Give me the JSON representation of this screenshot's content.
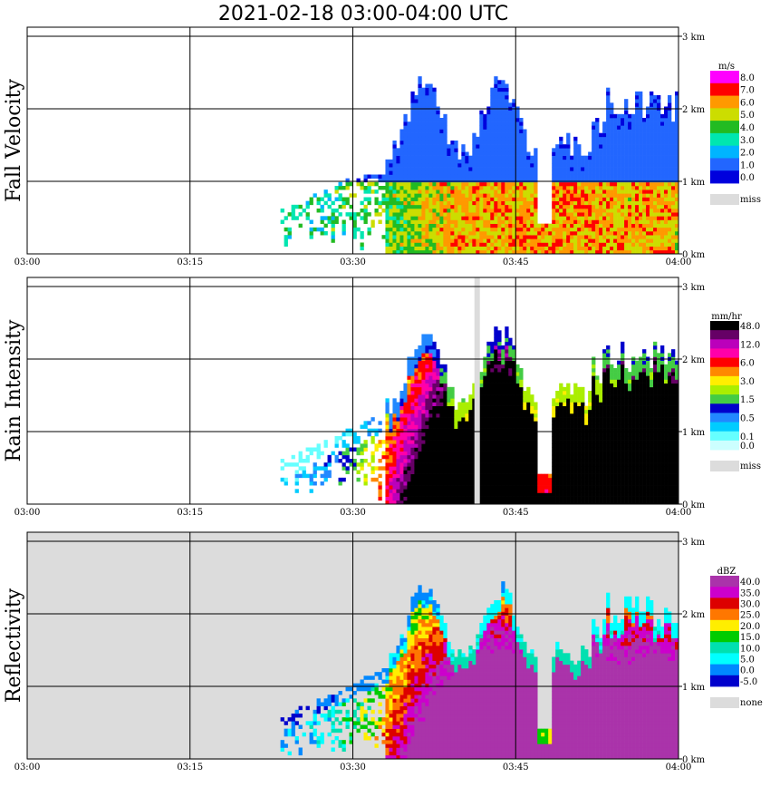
{
  "title": "2021-02-18   03:00-04:00 UTC",
  "chart_data": {
    "type": "heatmap",
    "title": "2021-02-18   03:00-04:00 UTC",
    "x_ticks": [
      "03:00",
      "03:15",
      "03:30",
      "03:45",
      "04:00"
    ],
    "y_ticks": [
      "0 km",
      "1 km",
      "2 km",
      "3 km"
    ],
    "xlim": [
      "03:00",
      "04:00"
    ],
    "ylim_km": [
      0,
      3.5
    ],
    "grid": true,
    "panels": [
      {
        "name": "Fall Velocity",
        "unit": "m/s",
        "missing_label": "miss",
        "missing_color": "#dcdcdc",
        "legend": [
          {
            "label": "8.0",
            "color": "#ff00ff"
          },
          {
            "label": "7.0",
            "color": "#ff0000"
          },
          {
            "label": "6.0",
            "color": "#ff9900"
          },
          {
            "label": "5.0",
            "color": "#ccdd00"
          },
          {
            "label": "4.0",
            "color": "#22bb22"
          },
          {
            "label": "3.0",
            "color": "#00e6b0"
          },
          {
            "label": "2.0",
            "color": "#00b4ff"
          },
          {
            "label": "1.0",
            "color": "#2266ff"
          },
          {
            "label": "0.0",
            "color": "#0000dd"
          }
        ]
      },
      {
        "name": "Rain Intensity",
        "unit": "mm/hr",
        "missing_label": "miss",
        "missing_color": "#dcdcdc",
        "legend": [
          {
            "label": "48.0",
            "color": "#000000"
          },
          {
            "label": "",
            "color": "#660066"
          },
          {
            "label": "12.0",
            "color": "#bb00bb"
          },
          {
            "label": "",
            "color": "#ff00aa"
          },
          {
            "label": "6.0",
            "color": "#ff0000"
          },
          {
            "label": "",
            "color": "#ff8800"
          },
          {
            "label": "3.0",
            "color": "#ffee00"
          },
          {
            "label": "",
            "color": "#aaee00"
          },
          {
            "label": "1.5",
            "color": "#44cc44"
          },
          {
            "label": "",
            "color": "#0000cc"
          },
          {
            "label": "0.5",
            "color": "#2288ff"
          },
          {
            "label": "",
            "color": "#00ccff"
          },
          {
            "label": "0.1",
            "color": "#66ffff"
          },
          {
            "label": "0.0",
            "color": "#ccffff"
          }
        ]
      },
      {
        "name": "Reflectivity",
        "unit": "dBZ",
        "missing_label": "none",
        "missing_color": "#dcdcdc",
        "legend": [
          {
            "label": "40.0",
            "color": "#aa33aa"
          },
          {
            "label": "35.0",
            "color": "#cc00cc"
          },
          {
            "label": "30.0",
            "color": "#dd0000"
          },
          {
            "label": "25.0",
            "color": "#ff7700"
          },
          {
            "label": "20.0",
            "color": "#ffee00"
          },
          {
            "label": "15.0",
            "color": "#00cc00"
          },
          {
            "label": "10.0",
            "color": "#00e0b0"
          },
          {
            "label": "5.0",
            "color": "#00ffff"
          },
          {
            "label": "0.0",
            "color": "#0088ff"
          },
          {
            "label": "-5.0",
            "color": "#0000cc"
          }
        ]
      }
    ]
  }
}
